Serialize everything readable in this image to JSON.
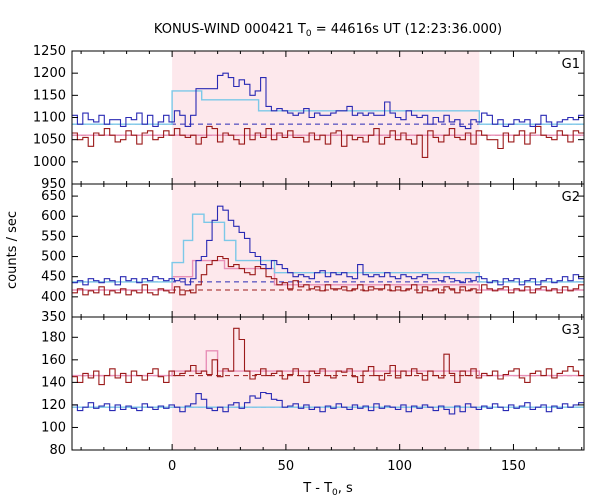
{
  "chart_data": {
    "type": "line",
    "title_main": "KONUS-WIND 000421 T",
    "title_sub": "0",
    "title_rest": " = 44616s UT (12:23:36.000)",
    "xlabel_main": "T - T",
    "xlabel_sub": "0",
    "xlabel_rest": ", s",
    "ylabel": "counts / sec",
    "xlim": [
      -44,
      181
    ],
    "x_ticks": [
      0,
      50,
      100,
      150
    ],
    "x_tick_labels": [
      "0",
      "50",
      "100",
      "150"
    ],
    "shaded_interval": [
      0,
      135
    ],
    "colors": {
      "shade": "#fde8ec",
      "blue": "#2a2ab4",
      "red": "#9b1a1a",
      "cyan": "#7cc8e8",
      "pink": "#e890b8",
      "dashed_blue": "#2a2ab4",
      "dashed_red": "#9b1a1a"
    },
    "panels": [
      {
        "label": "G1",
        "ylim": [
          950,
          1250
        ],
        "y_ticks": [
          950,
          1000,
          1050,
          1100,
          1150,
          1200,
          1250
        ],
        "y_tick_labels": [
          "950",
          "1000",
          "1050",
          "1100",
          "1150",
          "1200",
          "1250"
        ],
        "bg_blue": 1085,
        "bg_red": 1060,
        "fit_blue": [
          [
            -44,
            1085
          ],
          [
            0,
            1085
          ],
          [
            0,
            1160
          ],
          [
            13,
            1160
          ],
          [
            13,
            1140
          ],
          [
            38,
            1140
          ],
          [
            38,
            1115
          ],
          [
            135,
            1115
          ],
          [
            135,
            1085
          ],
          [
            181,
            1085
          ]
        ],
        "fit_red": [
          [
            -44,
            1060
          ],
          [
            181,
            1060
          ]
        ],
        "series_blue": [
          1105,
          1085,
          1110,
          1095,
          1090,
          1105,
          1085,
          1095,
          1095,
          1080,
          1100,
          1095,
          1110,
          1085,
          1105,
          1080,
          1090,
          1105,
          1090,
          1115,
          1105,
          1080,
          1105,
          1165,
          1165,
          1165,
          1165,
          1195,
          1200,
          1190,
          1170,
          1185,
          1175,
          1150,
          1160,
          1190,
          1125,
          1115,
          1120,
          1115,
          1110,
          1105,
          1110,
          1120,
          1100,
          1110,
          1105,
          1105,
          1110,
          1115,
          1115,
          1125,
          1105,
          1110,
          1105,
          1110,
          1105,
          1105,
          1135,
          1110,
          1100,
          1095,
          1115,
          1105,
          1100,
          1105,
          1085,
          1100,
          1090,
          1105,
          1090,
          1095,
          1080,
          1075,
          1095,
          1090,
          1110,
          1105,
          1085,
          1095,
          1080,
          1085,
          1095,
          1090,
          1095,
          1080,
          1085,
          1105,
          1090,
          1080,
          1090,
          1095,
          1100,
          1095,
          1105
        ],
        "series_red": [
          1065,
          1050,
          1055,
          1035,
          1065,
          1060,
          1075,
          1060,
          1045,
          1050,
          1070,
          1060,
          1040,
          1065,
          1070,
          1050,
          1055,
          1070,
          1060,
          1075,
          1060,
          1055,
          1060,
          1040,
          1055,
          1080,
          1075,
          1045,
          1065,
          1060,
          1050,
          1040,
          1075,
          1050,
          1065,
          1055,
          1075,
          1050,
          1065,
          1055,
          1070,
          1055,
          1055,
          1045,
          1065,
          1050,
          1060,
          1040,
          1065,
          1070,
          1035,
          1060,
          1050,
          1055,
          1045,
          1060,
          1075,
          1040,
          1055,
          1070,
          1050,
          1065,
          1050,
          1040,
          1060,
          1010,
          1070,
          1055,
          1045,
          1060,
          1075,
          1055,
          1050,
          1065,
          1040,
          1070,
          1060,
          1050,
          1050,
          1030,
          1065,
          1045,
          1060,
          1070,
          1040,
          1065,
          1080,
          1060,
          1055,
          1050,
          1070,
          1060,
          1045,
          1070,
          1065
        ]
      },
      {
        "label": "G2",
        "ylim": [
          350,
          680
        ],
        "y_ticks": [
          350,
          400,
          450,
          500,
          550,
          600,
          650
        ],
        "y_tick_labels": [
          "350",
          "400",
          "450",
          "500",
          "550",
          "600",
          "650"
        ],
        "bg_blue": 437,
        "bg_red": 417,
        "fit_blue": [
          [
            -44,
            437
          ],
          [
            0,
            437
          ],
          [
            0,
            485
          ],
          [
            5,
            485
          ],
          [
            5,
            540
          ],
          [
            9,
            540
          ],
          [
            9,
            605
          ],
          [
            14,
            605
          ],
          [
            14,
            585
          ],
          [
            23,
            585
          ],
          [
            23,
            540
          ],
          [
            28,
            540
          ],
          [
            28,
            490
          ],
          [
            45,
            490
          ],
          [
            45,
            460
          ],
          [
            135,
            460
          ],
          [
            135,
            437
          ],
          [
            181,
            437
          ]
        ],
        "fit_red": [
          [
            -44,
            417
          ],
          [
            0,
            417
          ],
          [
            0,
            450
          ],
          [
            9,
            450
          ],
          [
            9,
            490
          ],
          [
            23,
            490
          ],
          [
            23,
            470
          ],
          [
            45,
            470
          ],
          [
            45,
            430
          ],
          [
            135,
            430
          ],
          [
            135,
            417
          ],
          [
            181,
            417
          ]
        ],
        "series_blue": [
          435,
          440,
          430,
          445,
          440,
          435,
          445,
          440,
          430,
          450,
          440,
          445,
          435,
          445,
          440,
          450,
          445,
          440,
          445,
          440,
          445,
          430,
          445,
          490,
          500,
          540,
          590,
          625,
          615,
          590,
          575,
          560,
          545,
          510,
          500,
          480,
          470,
          490,
          480,
          470,
          460,
          450,
          455,
          450,
          445,
          460,
          465,
          450,
          460,
          455,
          460,
          450,
          445,
          480,
          455,
          450,
          455,
          450,
          460,
          450,
          445,
          455,
          450,
          445,
          450,
          455,
          445,
          445,
          440,
          450,
          445,
          440,
          435,
          445,
          440,
          450,
          445,
          435,
          440,
          430,
          445,
          440,
          445,
          430,
          440,
          445,
          430,
          440,
          445,
          435,
          440,
          450,
          440,
          455,
          445
        ],
        "series_red": [
          410,
          420,
          405,
          415,
          410,
          425,
          405,
          415,
          410,
          420,
          405,
          415,
          410,
          430,
          410,
          405,
          420,
          415,
          410,
          425,
          405,
          415,
          410,
          430,
          455,
          480,
          490,
          500,
          495,
          475,
          480,
          470,
          460,
          455,
          475,
          470,
          450,
          445,
          430,
          435,
          420,
          440,
          425,
          430,
          420,
          425,
          415,
          430,
          420,
          420,
          425,
          415,
          420,
          430,
          415,
          425,
          420,
          420,
          430,
          415,
          425,
          415,
          420,
          430,
          410,
          425,
          415,
          420,
          410,
          425,
          420,
          410,
          425,
          415,
          420,
          410,
          430,
          420,
          415,
          420,
          425,
          410,
          420,
          415,
          425,
          410,
          420,
          425,
          415,
          420,
          410,
          425,
          415,
          420,
          430
        ]
      },
      {
        "label": "G3",
        "ylim": [
          80,
          198
        ],
        "y_ticks": [
          80,
          100,
          120,
          140,
          160,
          180
        ],
        "y_tick_labels": [
          "80",
          "100",
          "120",
          "140",
          "160",
          "180"
        ],
        "bg_blue": 118,
        "bg_red": 146,
        "fit_blue": [
          [
            -44,
            118
          ],
          [
            181,
            118
          ]
        ],
        "fit_red": [
          [
            -44,
            146
          ],
          [
            0,
            146
          ],
          [
            0,
            150
          ],
          [
            15,
            150
          ],
          [
            15,
            168
          ],
          [
            20,
            168
          ],
          [
            20,
            150
          ],
          [
            135,
            150
          ],
          [
            135,
            146
          ],
          [
            181,
            146
          ]
        ],
        "series_blue": [
          120,
          115,
          118,
          122,
          117,
          119,
          121,
          115,
          120,
          116,
          119,
          117,
          115,
          121,
          118,
          116,
          119,
          117,
          120,
          118,
          114,
          119,
          121,
          130,
          125,
          117,
          115,
          118,
          114,
          120,
          122,
          117,
          122,
          128,
          126,
          131,
          130,
          125,
          124,
          118,
          119,
          121,
          117,
          120,
          116,
          118,
          114,
          119,
          117,
          121,
          118,
          116,
          120,
          117,
          119,
          115,
          121,
          117,
          119,
          118,
          116,
          120,
          114,
          119,
          117,
          120,
          118,
          115,
          119,
          116,
          112,
          119,
          114,
          121,
          118,
          116,
          119,
          117,
          121,
          118,
          115,
          120,
          117,
          119,
          122,
          116,
          118,
          120,
          114,
          119,
          117,
          121,
          118,
          120,
          122
        ],
        "series_red": [
          145,
          140,
          148,
          144,
          150,
          138,
          146,
          152,
          144,
          148,
          140,
          150,
          146,
          142,
          148,
          152,
          145,
          140,
          150,
          146,
          148,
          150,
          155,
          148,
          150,
          147,
          160,
          145,
          152,
          150,
          188,
          178,
          150,
          143,
          147,
          152,
          146,
          148,
          150,
          143,
          147,
          152,
          146,
          140,
          150,
          148,
          152,
          146,
          144,
          150,
          149,
          152,
          145,
          140,
          150,
          154,
          146,
          142,
          148,
          155,
          144,
          150,
          146,
          152,
          148,
          142,
          150,
          146,
          144,
          165,
          148,
          140,
          150,
          146,
          152,
          144,
          148,
          146,
          150,
          143,
          147,
          150,
          152,
          144,
          140,
          148,
          150,
          146,
          152,
          144,
          148,
          150,
          154,
          150,
          146
        ]
      }
    ]
  }
}
